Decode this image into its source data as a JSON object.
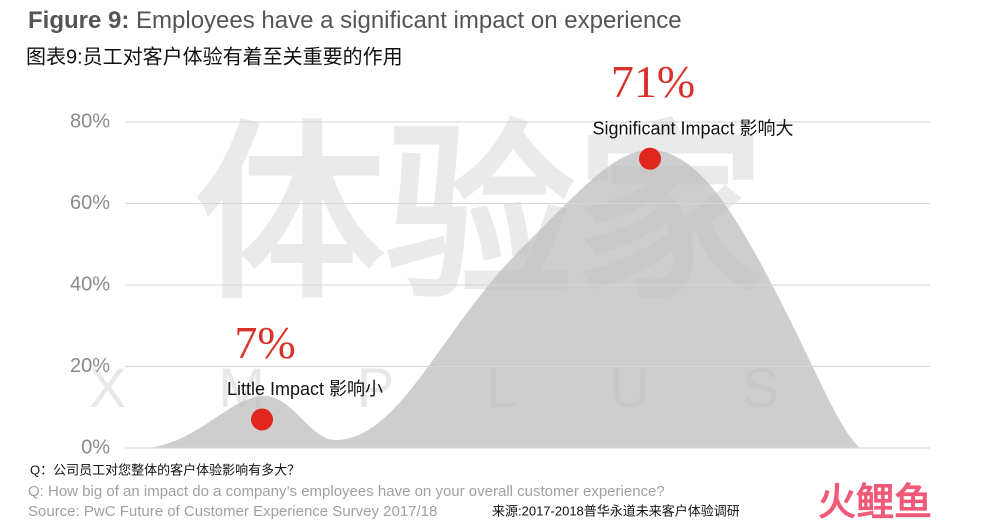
{
  "chart_data": {
    "type": "point",
    "title_label": "Figure 9:",
    "title": "Employees have a significant impact on experience",
    "subtitle": "图表9:员工对客户体验有着至关重要的作用",
    "categories": [
      "Little Impact 影响小",
      "Significant Impact 影响大"
    ],
    "values": [
      7,
      71
    ],
    "value_labels": [
      "7%",
      "71%"
    ],
    "color": "#e0261f",
    "label_color": "#d9322a",
    "ylim": [
      0,
      80
    ],
    "yticks": [
      {
        "value": 0,
        "label": "0%"
      },
      {
        "value": 20,
        "label": "20%"
      },
      {
        "value": 40,
        "label": "40%"
      },
      {
        "value": 60,
        "label": "60%"
      },
      {
        "value": 80,
        "label": "80%"
      }
    ],
    "grid": true,
    "question_cn": "Q：公司员工对您整体的客户体验影响有多大？",
    "question": "Q: How big of an impact do a company’s employees have on your overall customer experience?",
    "source": "Source: PwC Future of Customer Experience Survey 2017/18",
    "source_cn": "来源:2017-2018普华永道未来客户体验调研",
    "watermark": "体验家",
    "watermark_sub": "XMPLUS",
    "logo": "火鲤鱼"
  }
}
